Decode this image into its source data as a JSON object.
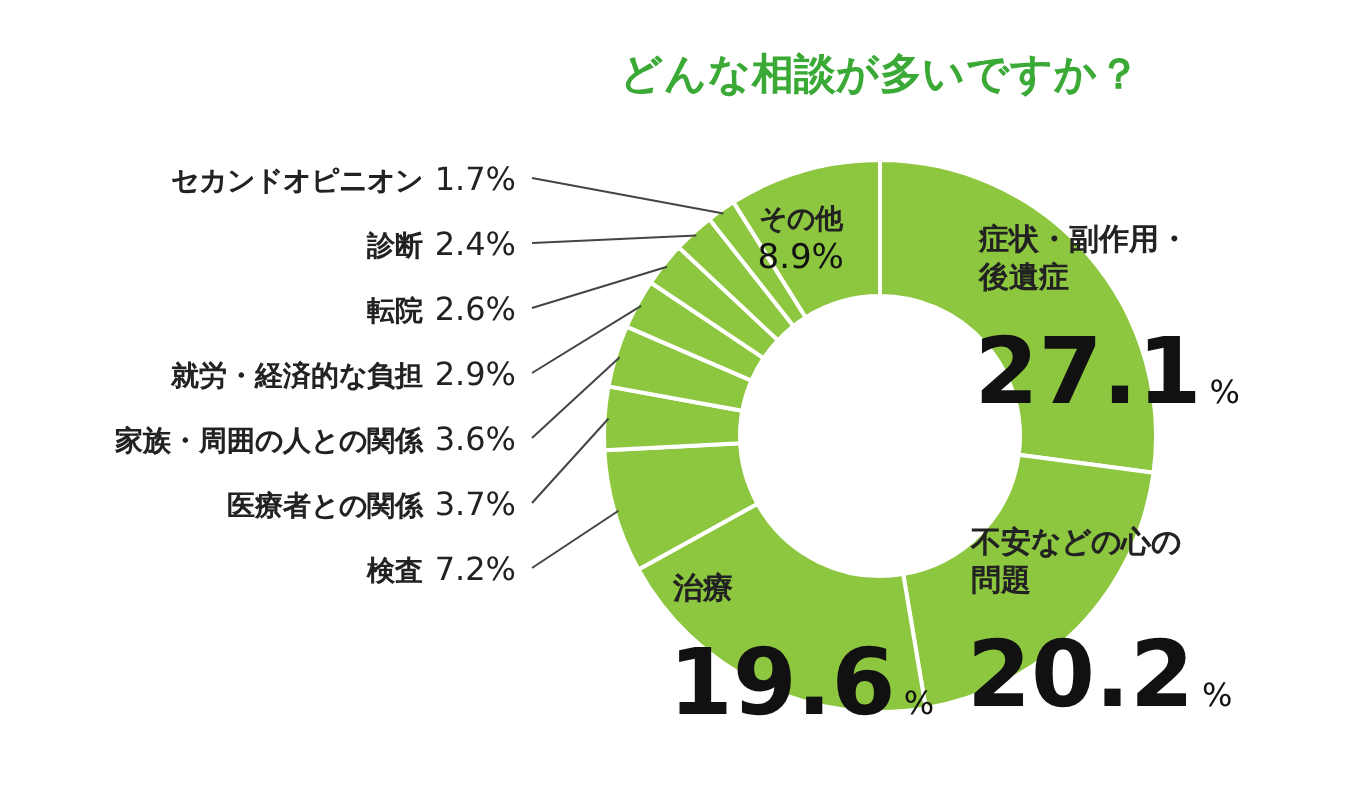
{
  "chart_data": {
    "type": "donut",
    "title": "どんな相談が多いですか？",
    "categories": [
      "症状・副作用・後遺症",
      "不安などの心の問題",
      "治療",
      "検査",
      "医療者との関係",
      "家族・周囲の人との関係",
      "就労・経済的な負担",
      "転院",
      "診断",
      "セカンドオピニオン",
      "その他"
    ],
    "values": [
      27.1,
      20.2,
      19.6,
      7.2,
      3.7,
      3.6,
      2.9,
      2.6,
      2.4,
      1.7,
      8.9
    ],
    "value_labels": [
      "27.1%",
      "20.2%",
      "19.6%",
      "7.2%",
      "3.7%",
      "3.6%",
      "2.9%",
      "2.6%",
      "2.4%",
      "1.7%",
      "8.9%"
    ],
    "colors": [
      "#8dc63f",
      "#8dc63f",
      "#8dc63f",
      "#8dc63f",
      "#8dc63f",
      "#8dc63f",
      "#8dc63f",
      "#8dc63f",
      "#8dc63f",
      "#8dc63f",
      "#8dc63f"
    ]
  }
}
